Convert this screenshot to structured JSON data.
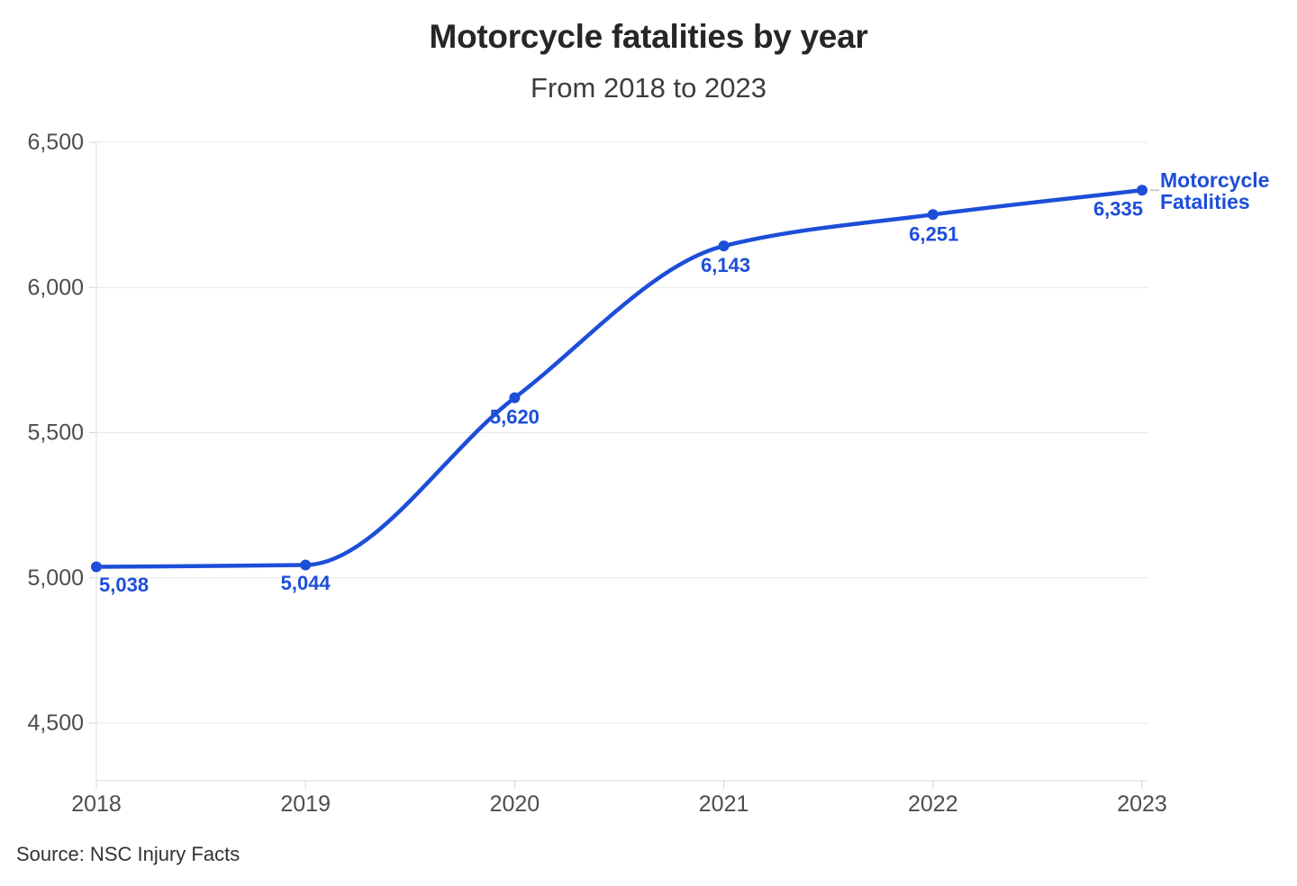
{
  "chart": {
    "title": "Motorcycle fatalities by year",
    "subtitle": "From 2018 to 2023",
    "source": "Source: NSC Injury Facts",
    "legend": {
      "line1": "Motorcycle",
      "line2": "Fatalities"
    }
  },
  "chart_data": {
    "type": "line",
    "title": "Motorcycle fatalities by year",
    "subtitle": "From 2018 to 2023",
    "categories": [
      "2018",
      "2019",
      "2020",
      "2021",
      "2022",
      "2023"
    ],
    "series": [
      {
        "name": "Motorcycle Fatalities",
        "values": [
          5038,
          5044,
          5620,
          6143,
          6251,
          6335
        ]
      }
    ],
    "point_labels": [
      "5,038",
      "5,044",
      "5,620",
      "6,143",
      "6,251",
      "6,335"
    ],
    "y_ticks": [
      6500,
      6000,
      5500,
      5000,
      4500
    ],
    "y_tick_labels": [
      "6,500",
      "6,000",
      "5,500",
      "5,000",
      "4,500"
    ],
    "ylim": [
      4300,
      6500
    ],
    "xlabel": "",
    "ylabel": "",
    "grid": "horizontal",
    "legend_position": "end-of-line",
    "legend_lines": [
      "Motorcycle",
      "Fatalities"
    ],
    "source": "Source: NSC Injury Facts",
    "colors": {
      "line": "#1d4ed8",
      "label_text": "#1d4ed8",
      "legend_text": "#1d4ed8",
      "grid": "#e9e9e9",
      "axis": "#dedede",
      "tick": "#d6d6d6",
      "leader_dash": "#c9c9c9",
      "tick_text": "#4d4d4d",
      "title": "#262626",
      "subtitle": "#3d3d3d",
      "source_text": "#333333",
      "background": "#ffffff"
    }
  }
}
